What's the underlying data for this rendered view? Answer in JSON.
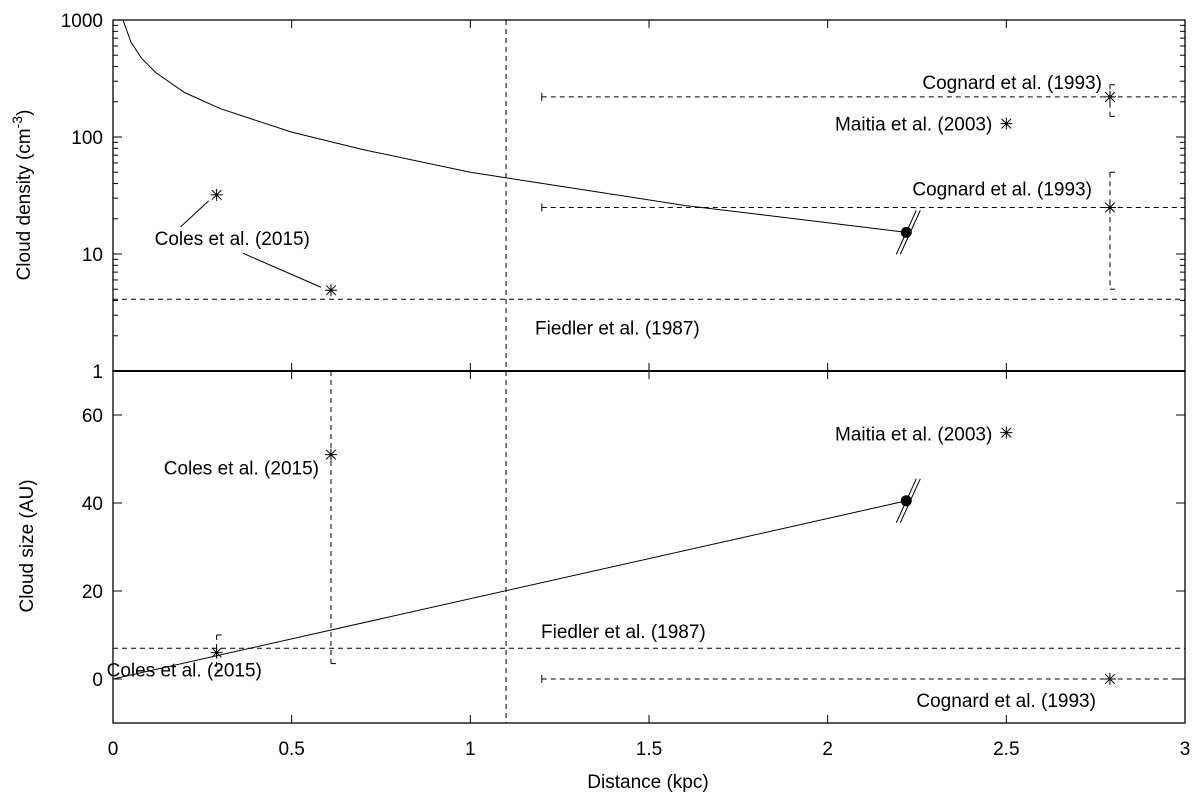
{
  "chart_data": [
    {
      "panel": "top",
      "type": "scatter",
      "ylabel": "Cloud density (cm",
      "ylabel_sup": "-3",
      "ylabel_end": ")",
      "yscale": "log",
      "ylim": [
        1,
        1000
      ],
      "xlim": [
        0,
        3
      ],
      "yticks": [
        1,
        10,
        100,
        1000
      ],
      "ytick_labels": [
        "1",
        "10",
        "100",
        "1000"
      ],
      "grid": false,
      "model_curve": {
        "description": "solid line",
        "x": [
          0.02,
          0.03,
          0.05,
          0.08,
          0.12,
          0.2,
          0.3,
          0.5,
          0.7,
          1.0,
          1.3,
          1.6,
          2.0,
          2.22
        ],
        "y": [
          1200,
          960,
          650,
          470,
          355,
          240,
          175,
          110,
          78,
          50,
          36,
          26,
          18.5,
          15.3
        ]
      },
      "model_point": {
        "x": 2.22,
        "y": 15.3
      },
      "reference_lines": [
        {
          "label": "Fiedler et al. (1987)",
          "y": 4.1,
          "x_from": 0,
          "x_to": 3
        },
        {
          "label": "Cognard et al. (1993)",
          "y": 220,
          "x_from": 1.2,
          "x_to": 3
        },
        {
          "label": "Cognard et al. (1993)",
          "y": 25,
          "x_from": 1.2,
          "x_to": 3
        }
      ],
      "points": [
        {
          "label": "Coles et al. (2015)",
          "x": 0.29,
          "y": 32
        },
        {
          "label": "Coles et al. (2015)",
          "x": 0.61,
          "y": 4.9
        },
        {
          "label": "Maitia et al. (2003)",
          "x": 2.5,
          "y": 130
        },
        {
          "label": "Cognard et al. (1993)",
          "x": 2.79,
          "y": 220,
          "err_low": 150,
          "err_high": 280
        },
        {
          "label": "Cognard et al. (1993)",
          "x": 2.79,
          "y": 25,
          "err_low": 5,
          "err_high": 50
        }
      ],
      "annotations": [
        {
          "text": "Cognard et al. (1993)",
          "x": 2.79,
          "y": 220
        },
        {
          "text": "Maitia et al. (2003)",
          "x": 2.5,
          "y": 130
        },
        {
          "text": "Cognard et al. (1993)",
          "x": 2.79,
          "y": 25
        },
        {
          "text": "Coles et al. (2015)",
          "x": 0.29,
          "y": 32
        },
        {
          "text": "Fiedler et al. (1987)",
          "x": 1.5,
          "y": 4.1
        }
      ]
    },
    {
      "panel": "bottom",
      "type": "scatter",
      "xlabel": "Distance (kpc)",
      "ylabel": "Cloud size (AU)",
      "xlim": [
        0,
        3
      ],
      "ylim": [
        -10,
        70
      ],
      "xticks": [
        0,
        0.5,
        1,
        1.5,
        2,
        2.5,
        3
      ],
      "xtick_labels": [
        "0",
        "0.5",
        "1",
        "1.5",
        "2",
        "2.5",
        "3"
      ],
      "yticks": [
        0,
        20,
        40,
        60
      ],
      "ytick_labels": [
        "0",
        "20",
        "40",
        "60"
      ],
      "grid": false,
      "vertical_line_x": 1.1,
      "model_curve": {
        "description": "solid line",
        "x": [
          0,
          2.22
        ],
        "y": [
          0,
          40.5
        ]
      },
      "model_point": {
        "x": 2.22,
        "y": 40.5
      },
      "reference_lines": [
        {
          "label": "Fiedler et al. (1987)",
          "y": 7,
          "x_from": 0,
          "x_to": 3
        },
        {
          "label": "Cognard et al. (1993)",
          "y": 0,
          "x_from": 1.2,
          "x_to": 3
        }
      ],
      "points": [
        {
          "label": "Coles et al. (2015)",
          "x": 0.29,
          "y": 6,
          "err_low": 2,
          "err_high": 10
        },
        {
          "label": "Coles et al. (2015)",
          "x": 0.61,
          "y": 51,
          "err_low": 3.5,
          "err_high": 70
        },
        {
          "label": "Maitia et al. (2003)",
          "x": 2.5,
          "y": 56
        },
        {
          "label": "Cognard et al. (1993)",
          "x": 2.79,
          "y": 0
        }
      ],
      "annotations": [
        {
          "text": "Maitia et al. (2003)",
          "x": 2.5,
          "y": 56
        },
        {
          "text": "Coles et al. (2015)",
          "x": 0.61,
          "y": 51
        },
        {
          "text": "Fiedler et al. (1987)",
          "x": 1.5,
          "y": 7
        },
        {
          "text": "Coles et al. (2015)",
          "x": 0.29,
          "y": 6
        },
        {
          "text": "Cognard et al. (1993)",
          "x": 2.79,
          "y": 0
        }
      ]
    }
  ]
}
